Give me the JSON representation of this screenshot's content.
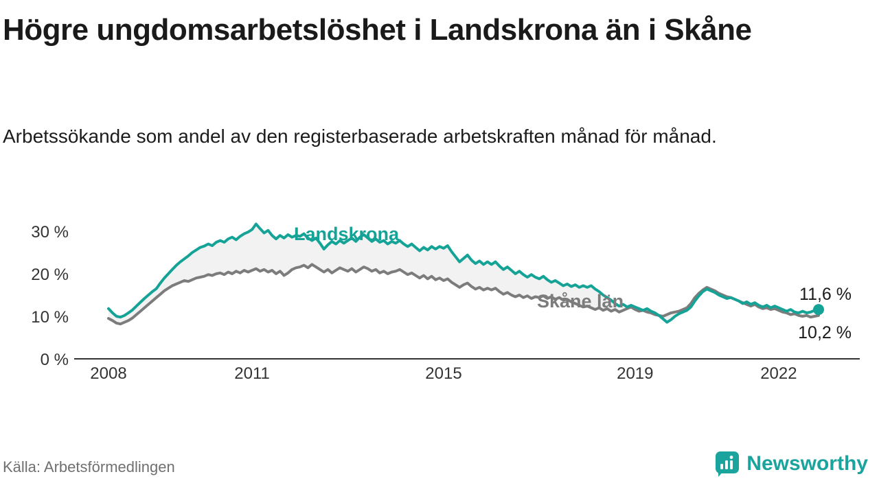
{
  "header": {
    "title": "Högre ungdomsarbetslöshet i Landskrona än i Skåne",
    "subtitle": "Arbetssökande som andel av den registerbaserade arbetskraften månad för månad."
  },
  "footer": {
    "source": "Källa: Arbetsförmedlingen",
    "brand": "Newsworthy",
    "brand_icon": "newsworthy-logo"
  },
  "colors": {
    "accent_teal": "#14a396",
    "series_gray": "#7c7c7c",
    "band_fill": "#f2f2f2",
    "axis": "#333333",
    "text_dark": "#1a1a1a",
    "brand_teal": "#1ba49d"
  },
  "chart_data": {
    "type": "line",
    "title": "Högre ungdomsarbetslöshet i Landskrona än i Skåne",
    "x_unit": "month",
    "x_start": "2008-01",
    "x_tick_labels": [
      "2008",
      "2011",
      "2015",
      "2019",
      "2022"
    ],
    "x_tick_month_index": [
      0,
      36,
      84,
      132,
      168
    ],
    "y_ticks": [
      "0 %",
      "10 %",
      "20 %",
      "30 %"
    ],
    "y_tick_values": [
      0,
      10,
      20,
      30
    ],
    "ylim": [
      0,
      33
    ],
    "grid": false,
    "legend_position": "inline-labels",
    "band_between_series": true,
    "series": [
      {
        "name": "Landskrona",
        "color": "#14a396",
        "end_label": "11,6 %",
        "end_value": 11.6,
        "values": [
          11.8,
          10.8,
          10.0,
          9.8,
          10.2,
          10.8,
          11.5,
          12.4,
          13.3,
          14.2,
          15.0,
          15.8,
          16.5,
          17.8,
          19.0,
          20.0,
          21.0,
          22.0,
          22.8,
          23.5,
          24.2,
          25.0,
          25.6,
          26.2,
          26.5,
          27.0,
          26.6,
          27.4,
          27.8,
          27.4,
          28.2,
          28.6,
          28.0,
          28.8,
          29.4,
          29.8,
          30.4,
          31.7,
          30.6,
          29.6,
          30.2,
          29.0,
          28.2,
          29.0,
          28.4,
          29.2,
          28.6,
          29.0,
          28.8,
          29.4,
          28.4,
          27.8,
          28.4,
          27.2,
          25.8,
          26.8,
          27.6,
          27.0,
          27.8,
          27.2,
          27.8,
          28.4,
          27.6,
          28.6,
          29.2,
          28.4,
          27.6,
          28.2,
          27.4,
          27.8,
          27.0,
          27.6,
          27.2,
          27.8,
          27.0,
          26.4,
          27.0,
          26.2,
          25.4,
          26.2,
          25.6,
          26.4,
          25.8,
          26.4,
          26.0,
          26.6,
          25.2,
          24.0,
          22.8,
          23.6,
          24.4,
          23.2,
          22.4,
          23.0,
          22.2,
          22.8,
          22.2,
          22.8,
          21.8,
          21.0,
          21.6,
          20.8,
          20.0,
          20.6,
          19.8,
          19.2,
          19.8,
          19.2,
          18.8,
          19.4,
          18.6,
          18.0,
          18.4,
          17.8,
          17.2,
          17.6,
          17.0,
          17.4,
          16.8,
          17.2,
          16.8,
          17.2,
          16.4,
          15.8,
          15.0,
          14.4,
          13.8,
          13.0,
          12.4,
          12.8,
          12.2,
          12.6,
          12.2,
          11.8,
          11.4,
          11.8,
          11.2,
          10.8,
          10.2,
          9.4,
          8.6,
          9.2,
          10.0,
          10.6,
          11.0,
          11.4,
          12.2,
          13.6,
          14.8,
          15.8,
          16.4,
          16.0,
          15.6,
          15.0,
          14.6,
          14.2,
          14.4,
          14.0,
          13.6,
          13.0,
          13.4,
          12.8,
          13.2,
          12.6,
          12.2,
          12.6,
          12.0,
          12.4,
          12.0,
          11.6,
          11.2,
          11.6,
          11.0,
          10.8,
          11.2,
          10.8,
          11.0,
          11.4,
          11.6
        ]
      },
      {
        "name": "Skåne län",
        "color": "#7c7c7c",
        "end_label": "10,2 %",
        "end_value": 10.2,
        "values": [
          9.5,
          9.0,
          8.4,
          8.2,
          8.6,
          9.0,
          9.6,
          10.4,
          11.2,
          12.0,
          12.8,
          13.6,
          14.4,
          15.2,
          16.0,
          16.6,
          17.2,
          17.6,
          18.0,
          18.4,
          18.2,
          18.6,
          19.0,
          19.2,
          19.4,
          19.8,
          19.6,
          20.0,
          20.2,
          19.8,
          20.4,
          20.0,
          20.6,
          20.2,
          20.8,
          20.4,
          20.8,
          21.2,
          20.6,
          21.0,
          20.4,
          20.8,
          20.0,
          20.6,
          19.6,
          20.2,
          21.0,
          21.4,
          21.6,
          22.0,
          21.4,
          22.2,
          21.6,
          21.0,
          20.4,
          21.0,
          20.2,
          20.8,
          21.4,
          21.0,
          20.6,
          21.2,
          20.4,
          21.0,
          21.6,
          21.2,
          20.6,
          21.0,
          20.2,
          20.6,
          20.0,
          20.4,
          20.6,
          21.0,
          20.4,
          19.8,
          20.2,
          19.6,
          19.0,
          19.6,
          18.8,
          19.4,
          18.6,
          19.0,
          18.4,
          18.8,
          18.0,
          17.4,
          16.8,
          17.4,
          17.8,
          17.0,
          16.4,
          16.8,
          16.2,
          16.6,
          16.2,
          16.6,
          15.8,
          15.2,
          15.6,
          15.0,
          14.6,
          15.0,
          14.4,
          14.8,
          14.2,
          14.6,
          14.4,
          14.8,
          14.2,
          14.6,
          14.0,
          14.4,
          13.8,
          14.0,
          13.4,
          13.0,
          12.6,
          12.2,
          12.4,
          12.0,
          11.6,
          12.0,
          11.4,
          11.8,
          11.2,
          11.6,
          11.0,
          11.4,
          11.8,
          12.2,
          11.6,
          11.2,
          11.4,
          11.0,
          10.8,
          10.4,
          10.2,
          10.0,
          10.4,
          10.8,
          11.0,
          11.2,
          11.6,
          12.0,
          13.0,
          14.4,
          15.4,
          16.2,
          16.8,
          16.4,
          16.0,
          15.4,
          15.0,
          14.6,
          14.4,
          14.0,
          13.6,
          13.2,
          12.8,
          12.4,
          12.8,
          12.2,
          11.8,
          12.0,
          11.6,
          11.8,
          11.4,
          11.0,
          10.8,
          10.4,
          10.6,
          10.2,
          10.0,
          10.2,
          9.8,
          10.0,
          10.2
        ]
      }
    ]
  }
}
